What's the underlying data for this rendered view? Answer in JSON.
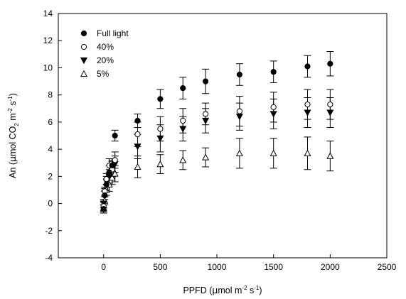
{
  "chart_data": {
    "type": "scatter",
    "xlabel": {
      "prefix": "PPFD (",
      "mu": "µ",
      "unit": "mol  m",
      "exp1": "-2",
      "mid": " s",
      "exp2": "-1",
      "suffix": ")"
    },
    "ylabel": {
      "prefix": "An (",
      "mu": "µ",
      "unit": "mol CO",
      "sub": "2",
      "m": " m",
      "exp1": "-2",
      "s": " s",
      "exp2": "-1",
      "suffix": ")"
    },
    "xlim": [
      -400,
      2500
    ],
    "ylim": [
      -4,
      14
    ],
    "xticks": [
      0,
      500,
      1000,
      1500,
      2000,
      2500
    ],
    "yticks": [
      -4,
      -2,
      0,
      2,
      4,
      6,
      8,
      10,
      12,
      14
    ],
    "grid": false,
    "legend_position": "top-left",
    "series": [
      {
        "name": "Full light",
        "marker": "filled-circle",
        "points": [
          {
            "x": 0,
            "y": -0.4,
            "err": 0.3
          },
          {
            "x": 10,
            "y": 0.6,
            "err": 0.3
          },
          {
            "x": 25,
            "y": 1.4,
            "err": 0.4
          },
          {
            "x": 50,
            "y": 2.3,
            "err": 0.5
          },
          {
            "x": 75,
            "y": 2.8,
            "err": 0.5
          },
          {
            "x": 100,
            "y": 5.0,
            "err": 0.4
          },
          {
            "x": 300,
            "y": 6.1,
            "err": 0.5
          },
          {
            "x": 500,
            "y": 7.7,
            "err": 0.7
          },
          {
            "x": 700,
            "y": 8.5,
            "err": 0.8
          },
          {
            "x": 900,
            "y": 9.0,
            "err": 0.9
          },
          {
            "x": 1200,
            "y": 9.5,
            "err": 0.8
          },
          {
            "x": 1500,
            "y": 9.7,
            "err": 0.8
          },
          {
            "x": 1800,
            "y": 10.1,
            "err": 0.8
          },
          {
            "x": 2000,
            "y": 10.3,
            "err": 0.9
          }
        ]
      },
      {
        "name": "40%",
        "marker": "open-circle",
        "points": [
          {
            "x": 0,
            "y": -0.2,
            "err": 0.3
          },
          {
            "x": 10,
            "y": 0.9,
            "err": 0.3
          },
          {
            "x": 25,
            "y": 1.8,
            "err": 0.4
          },
          {
            "x": 50,
            "y": 2.8,
            "err": 0.5
          },
          {
            "x": 75,
            "y": 2.5,
            "err": 0.6
          },
          {
            "x": 100,
            "y": 3.2,
            "err": 0.6
          },
          {
            "x": 300,
            "y": 5.1,
            "err": 0.9
          },
          {
            "x": 500,
            "y": 5.5,
            "err": 0.9
          },
          {
            "x": 700,
            "y": 6.1,
            "err": 0.9
          },
          {
            "x": 900,
            "y": 6.6,
            "err": 0.8
          },
          {
            "x": 1200,
            "y": 6.8,
            "err": 1.1
          },
          {
            "x": 1500,
            "y": 7.1,
            "err": 1.1
          },
          {
            "x": 1800,
            "y": 7.3,
            "err": 1.1
          },
          {
            "x": 2000,
            "y": 7.3,
            "err": 1.1
          }
        ]
      },
      {
        "name": "20%",
        "marker": "filled-triangle-down",
        "points": [
          {
            "x": 0,
            "y": 0.0,
            "err": 0.3
          },
          {
            "x": 10,
            "y": 0.8,
            "err": 0.3
          },
          {
            "x": 25,
            "y": 1.6,
            "err": 0.4
          },
          {
            "x": 50,
            "y": 2.0,
            "err": 0.5
          },
          {
            "x": 75,
            "y": 2.6,
            "err": 0.6
          },
          {
            "x": 100,
            "y": 2.9,
            "err": 0.6
          },
          {
            "x": 300,
            "y": 4.2,
            "err": 0.9
          },
          {
            "x": 500,
            "y": 4.8,
            "err": 1.0
          },
          {
            "x": 700,
            "y": 5.5,
            "err": 0.9
          },
          {
            "x": 900,
            "y": 6.1,
            "err": 0.9
          },
          {
            "x": 1200,
            "y": 6.4,
            "err": 1.0
          },
          {
            "x": 1500,
            "y": 6.6,
            "err": 1.1
          },
          {
            "x": 1800,
            "y": 6.7,
            "err": 1.1
          },
          {
            "x": 2000,
            "y": 6.7,
            "err": 1.1
          }
        ]
      },
      {
        "name": "5%",
        "marker": "open-triangle-up",
        "points": [
          {
            "x": 0,
            "y": -0.4,
            "err": 0.3
          },
          {
            "x": 10,
            "y": 0.2,
            "err": 0.3
          },
          {
            "x": 25,
            "y": 1.0,
            "err": 0.4
          },
          {
            "x": 50,
            "y": 1.4,
            "err": 0.5
          },
          {
            "x": 75,
            "y": 1.9,
            "err": 0.5
          },
          {
            "x": 100,
            "y": 2.2,
            "err": 0.6
          },
          {
            "x": 300,
            "y": 2.7,
            "err": 0.8
          },
          {
            "x": 500,
            "y": 2.9,
            "err": 0.7
          },
          {
            "x": 700,
            "y": 3.2,
            "err": 0.7
          },
          {
            "x": 900,
            "y": 3.4,
            "err": 0.7
          },
          {
            "x": 1200,
            "y": 3.7,
            "err": 1.1
          },
          {
            "x": 1500,
            "y": 3.7,
            "err": 1.1
          },
          {
            "x": 1800,
            "y": 3.7,
            "err": 1.2
          },
          {
            "x": 2000,
            "y": 3.5,
            "err": 1.1
          }
        ]
      }
    ]
  }
}
